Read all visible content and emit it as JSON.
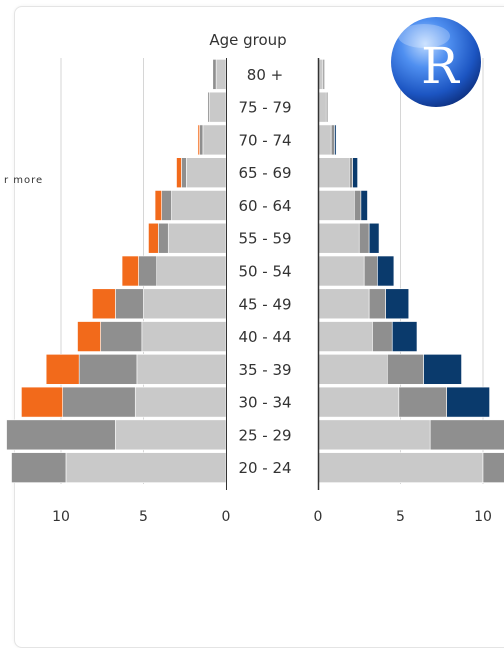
{
  "chart_data": {
    "type": "bar",
    "title": "Age group",
    "categories": [
      "80 +",
      "75 - 79",
      "70 - 74",
      "65 - 69",
      "60 - 64",
      "55 - 59",
      "50 - 54",
      "45 - 49",
      "40 - 44",
      "35 - 39",
      "30 - 34",
      "25 - 29",
      "20 - 24"
    ],
    "left_ticks": [
      "10",
      "5",
      "0"
    ],
    "right_ticks": [
      "0",
      "5",
      "10"
    ],
    "xlim": [
      0,
      12.5
    ],
    "grid": true,
    "legend_fragment": "r more",
    "left": {
      "series": [
        {
          "name": "",
          "values": [
            0.6,
            1.0,
            1.4,
            2.4,
            3.3,
            3.5,
            4.2,
            5.0,
            5.1,
            5.4,
            5.5,
            6.7,
            9.7
          ]
        },
        {
          "name": "",
          "values": [
            0.2,
            0.1,
            0.2,
            0.3,
            0.6,
            0.6,
            1.1,
            1.7,
            2.5,
            3.5,
            4.4,
            6.6,
            3.3
          ]
        },
        {
          "name": "",
          "values": [
            0.0,
            0.0,
            0.1,
            0.3,
            0.4,
            0.6,
            1.0,
            1.4,
            1.4,
            2.0,
            2.5,
            0.0,
            0.0
          ]
        }
      ],
      "colors": [
        "#c9c9c9",
        "#8f8f8f",
        "#f26a1b"
      ]
    },
    "right": {
      "series": [
        {
          "name": "",
          "values": [
            0.3,
            0.5,
            0.8,
            1.9,
            2.2,
            2.5,
            2.8,
            3.1,
            3.3,
            4.2,
            4.9,
            6.8,
            10.0
          ]
        },
        {
          "name": "",
          "values": [
            0.1,
            0.1,
            0.2,
            0.2,
            0.4,
            0.6,
            0.8,
            1.0,
            1.2,
            2.2,
            2.9,
            5.7,
            2.5
          ]
        },
        {
          "name": "",
          "values": [
            0.0,
            0.0,
            0.1,
            0.3,
            0.4,
            0.6,
            1.0,
            1.4,
            1.5,
            2.3,
            2.6,
            0.0,
            0.0
          ]
        }
      ],
      "colors": [
        "#c9c9c9",
        "#8f8f8f",
        "#0a3a6c"
      ]
    },
    "logo_letter": "R"
  }
}
